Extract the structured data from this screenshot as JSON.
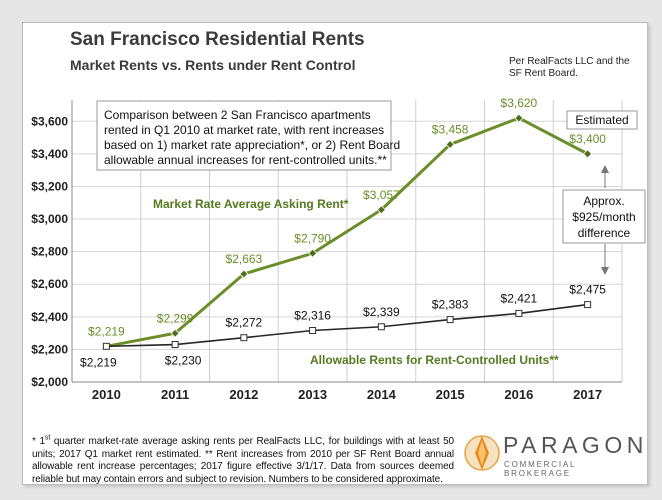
{
  "title": "San Francisco Residential Rents",
  "subtitle": "Market Rents vs. Rents under Rent Control",
  "source_note": "Per RealFacts LLC and the SF Rent Board.",
  "colors": {
    "market": "#6b8e2a",
    "controlled": "#262626",
    "label_green": "#557a1f"
  },
  "chart_data": {
    "type": "line",
    "categories": [
      "2010",
      "2011",
      "2012",
      "2013",
      "2014",
      "2015",
      "2016",
      "2017"
    ],
    "ylim": [
      2000,
      3700
    ],
    "y_ticks": [
      2000,
      2200,
      2400,
      2600,
      2800,
      3000,
      3200,
      3400,
      3600
    ],
    "y_tick_labels": [
      "$2,000",
      "$2,200",
      "$2,400",
      "$2,600",
      "$2,800",
      "$3,000",
      "$3,200",
      "$3,400",
      "$3,600"
    ],
    "series": [
      {
        "name": "Market Rate Average Asking Rent*",
        "values": [
          2219,
          2299,
          2663,
          2790,
          3057,
          3458,
          3620,
          3400
        ],
        "labels": [
          "$2,219",
          "$2,299",
          "$2,663",
          "$2,790",
          "$3,057",
          "$3,458",
          "$3,620",
          "$3,400"
        ]
      },
      {
        "name": "Allowable Rents for Rent-Controlled Units**",
        "values": [
          2219,
          2230,
          2272,
          2316,
          2339,
          2383,
          2421,
          2475
        ],
        "labels": [
          "$2,219",
          "$2,230",
          "$2,272",
          "$2,316",
          "$2,339",
          "$2,383",
          "$2,421",
          "$2,475"
        ]
      }
    ],
    "annotations": {
      "comparison_box": [
        "Comparison between 2 San Francisco apartments",
        "rented in Q1 2010 at market rate, with rent increases",
        "based on 1) market rate appreciation*, or 2) Rent Board",
        "allowable annual increases for rent-controlled units.**"
      ],
      "estimated": "Estimated",
      "difference": [
        "Approx.",
        "$925/month",
        "difference"
      ]
    }
  },
  "footnote": {
    "marker": "* 1",
    "sup": "st",
    "text": " quarter market-rate average asking rents per RealFacts LLC, for buildings with at least 50 units; 2017 Q1 market rent estimated. ** Rent increases from 2010 per SF Rent Board annual allowable rent increase percentages; 2017 figure effective 3/1/17. Data from sources deemed reliable but may contain errors and subject to revision. Numbers to be considered approximate."
  },
  "logo": {
    "word": "PARAGON",
    "sub": "COMMERCIAL BROKERAGE"
  }
}
